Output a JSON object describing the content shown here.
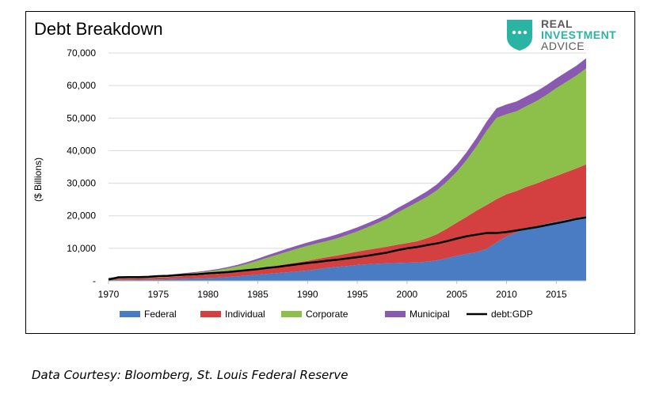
{
  "chart_data": {
    "type": "area",
    "title": "Debt Breakdown",
    "xlabel": "",
    "ylabel": "($ Billions)",
    "xlim": [
      1970,
      2018
    ],
    "ylim": [
      0,
      70000
    ],
    "x_ticks": [
      "1970",
      "1975",
      "1980",
      "1985",
      "1990",
      "1995",
      "2000",
      "2005",
      "2010",
      "2015"
    ],
    "y_ticks": [
      "-",
      "10,000",
      "20,000",
      "30,000",
      "40,000",
      "50,000",
      "60,000",
      "70,000"
    ],
    "stacked": true,
    "grid": "horizontal",
    "legend_position": "bottom",
    "x": [
      1970,
      1971,
      1972,
      1973,
      1974,
      1975,
      1976,
      1977,
      1978,
      1979,
      1980,
      1981,
      1982,
      1983,
      1984,
      1985,
      1986,
      1987,
      1988,
      1989,
      1990,
      1991,
      1992,
      1993,
      1994,
      1995,
      1996,
      1997,
      1998,
      1999,
      2000,
      2001,
      2002,
      2003,
      2004,
      2005,
      2006,
      2007,
      2008,
      2009,
      2010,
      2011,
      2012,
      2013,
      2014,
      2015,
      2016,
      2017,
      2018
    ],
    "series": [
      {
        "name": "Federal",
        "color": "#4a7cc4",
        "values": [
          300,
          320,
          340,
          360,
          380,
          440,
          530,
          620,
          700,
          780,
          880,
          1000,
          1200,
          1400,
          1650,
          1900,
          2150,
          2400,
          2650,
          2900,
          3200,
          3600,
          4000,
          4300,
          4600,
          4900,
          5100,
          5300,
          5400,
          5500,
          5600,
          5650,
          5900,
          6300,
          7000,
          7700,
          8300,
          8800,
          9800,
          11800,
          13600,
          14900,
          16000,
          16800,
          17600,
          18200,
          18800,
          19300,
          20000
        ]
      },
      {
        "name": "Individual",
        "color": "#d43f3f",
        "values": [
          350,
          380,
          420,
          460,
          500,
          550,
          620,
          730,
          850,
          950,
          1050,
          1150,
          1250,
          1400,
          1600,
          1850,
          2100,
          2300,
          2550,
          2750,
          2950,
          3150,
          3300,
          3500,
          3800,
          4100,
          4400,
          4700,
          5100,
          5600,
          6000,
          6500,
          7200,
          8000,
          9000,
          10200,
          11400,
          12800,
          13500,
          13300,
          13000,
          12700,
          12900,
          13100,
          13500,
          14000,
          14600,
          15200,
          15800
        ]
      },
      {
        "name": "Corporate",
        "color": "#8dc04a",
        "values": [
          250,
          280,
          310,
          350,
          400,
          450,
          520,
          600,
          700,
          800,
          950,
          1150,
          1400,
          1700,
          2050,
          2450,
          2900,
          3350,
          3800,
          4250,
          4600,
          4800,
          4950,
          5300,
          5700,
          6200,
          6900,
          7700,
          8600,
          9800,
          10900,
          12000,
          12700,
          13500,
          14500,
          15600,
          17500,
          19800,
          22800,
          25000,
          24600,
          24500,
          24800,
          25300,
          26000,
          27000,
          27700,
          28500,
          29500
        ]
      },
      {
        "name": "Municipal",
        "color": "#8a5ab0",
        "values": [
          100,
          110,
          120,
          140,
          150,
          170,
          190,
          220,
          250,
          280,
          300,
          340,
          390,
          460,
          540,
          650,
          760,
          850,
          930,
          990,
          1050,
          1100,
          1150,
          1200,
          1230,
          1250,
          1270,
          1300,
          1350,
          1400,
          1450,
          1550,
          1700,
          1850,
          2000,
          2200,
          2400,
          2600,
          2800,
          2950,
          3000,
          3000,
          3000,
          3000,
          3000,
          3000,
          3050,
          3050,
          3100
        ]
      },
      {
        "name": "debt:GDP",
        "color": "#000000",
        "type": "line",
        "values": [
          400,
          1100,
          1150,
          1150,
          1250,
          1450,
          1550,
          1750,
          1900,
          2050,
          2300,
          2500,
          2700,
          3000,
          3300,
          3600,
          4000,
          4300,
          4700,
          5100,
          5500,
          5800,
          6200,
          6500,
          6900,
          7300,
          7700,
          8200,
          8700,
          9400,
          10000,
          10400,
          11000,
          11500,
          12200,
          13000,
          13700,
          14200,
          14700,
          14700,
          15000,
          15500,
          16000,
          16500,
          17100,
          17700,
          18300,
          19000,
          19500
        ]
      }
    ]
  },
  "logo": {
    "line1": "REAL",
    "line2": "INVESTMENT",
    "line3": "ADVICE"
  },
  "caption": "Data Courtesy: Bloomberg, St. Louis Federal Reserve"
}
